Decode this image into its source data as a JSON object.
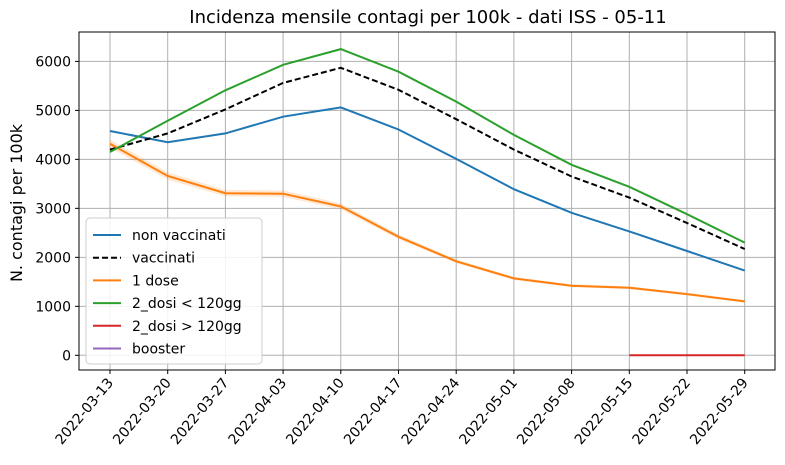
{
  "chart_data": {
    "type": "line",
    "title": "Incidenza mensile contagi per 100k - dati ISS - 05-11",
    "xlabel": "",
    "ylabel": "N. contagi per 100k",
    "categories": [
      "2022-03-13",
      "2022-03-20",
      "2022-03-27",
      "2022-04-03",
      "2022-04-10",
      "2022-04-17",
      "2022-04-24",
      "2022-05-01",
      "2022-05-08",
      "2022-05-15",
      "2022-05-22",
      "2022-05-29"
    ],
    "ylim": [
      -300,
      6600
    ],
    "yticks": [
      0,
      1000,
      2000,
      3000,
      4000,
      5000,
      6000
    ],
    "grid": true,
    "legend_position": "lower-left",
    "series": [
      {
        "name": "non vaccinati",
        "color": "#1f77b4",
        "dash": "solid",
        "values": [
          4580,
          4350,
          4530,
          4870,
          5060,
          4610,
          4010,
          3390,
          2910,
          2530,
          2130,
          1730
        ]
      },
      {
        "name": "vaccinati",
        "color": "#000000",
        "dash": "dashed",
        "values": [
          4200,
          4530,
          5020,
          5560,
          5870,
          5420,
          4820,
          4200,
          3650,
          3220,
          2700,
          2170
        ]
      },
      {
        "name": "1 dose",
        "color": "#ff7f0e",
        "dash": "solid",
        "band": true,
        "values": [
          4320,
          3660,
          3310,
          3300,
          3040,
          2420,
          1920,
          1570,
          1420,
          1380,
          1250,
          1100
        ]
      },
      {
        "name": "2_dosi < 120gg",
        "color": "#2ca02c",
        "dash": "solid",
        "values": [
          4150,
          4790,
          5410,
          5930,
          6250,
          5790,
          5180,
          4500,
          3890,
          3440,
          2880,
          2300
        ]
      },
      {
        "name": "2_dosi > 120gg",
        "color": "#d62728",
        "dash": "solid",
        "values": [
          null,
          null,
          null,
          null,
          null,
          null,
          null,
          null,
          null,
          0,
          0,
          0
        ]
      },
      {
        "name": "booster",
        "color": "#9467bd",
        "dash": "solid",
        "values": [
          null,
          null,
          null,
          null,
          null,
          null,
          null,
          null,
          null,
          null,
          null,
          null
        ]
      }
    ]
  }
}
